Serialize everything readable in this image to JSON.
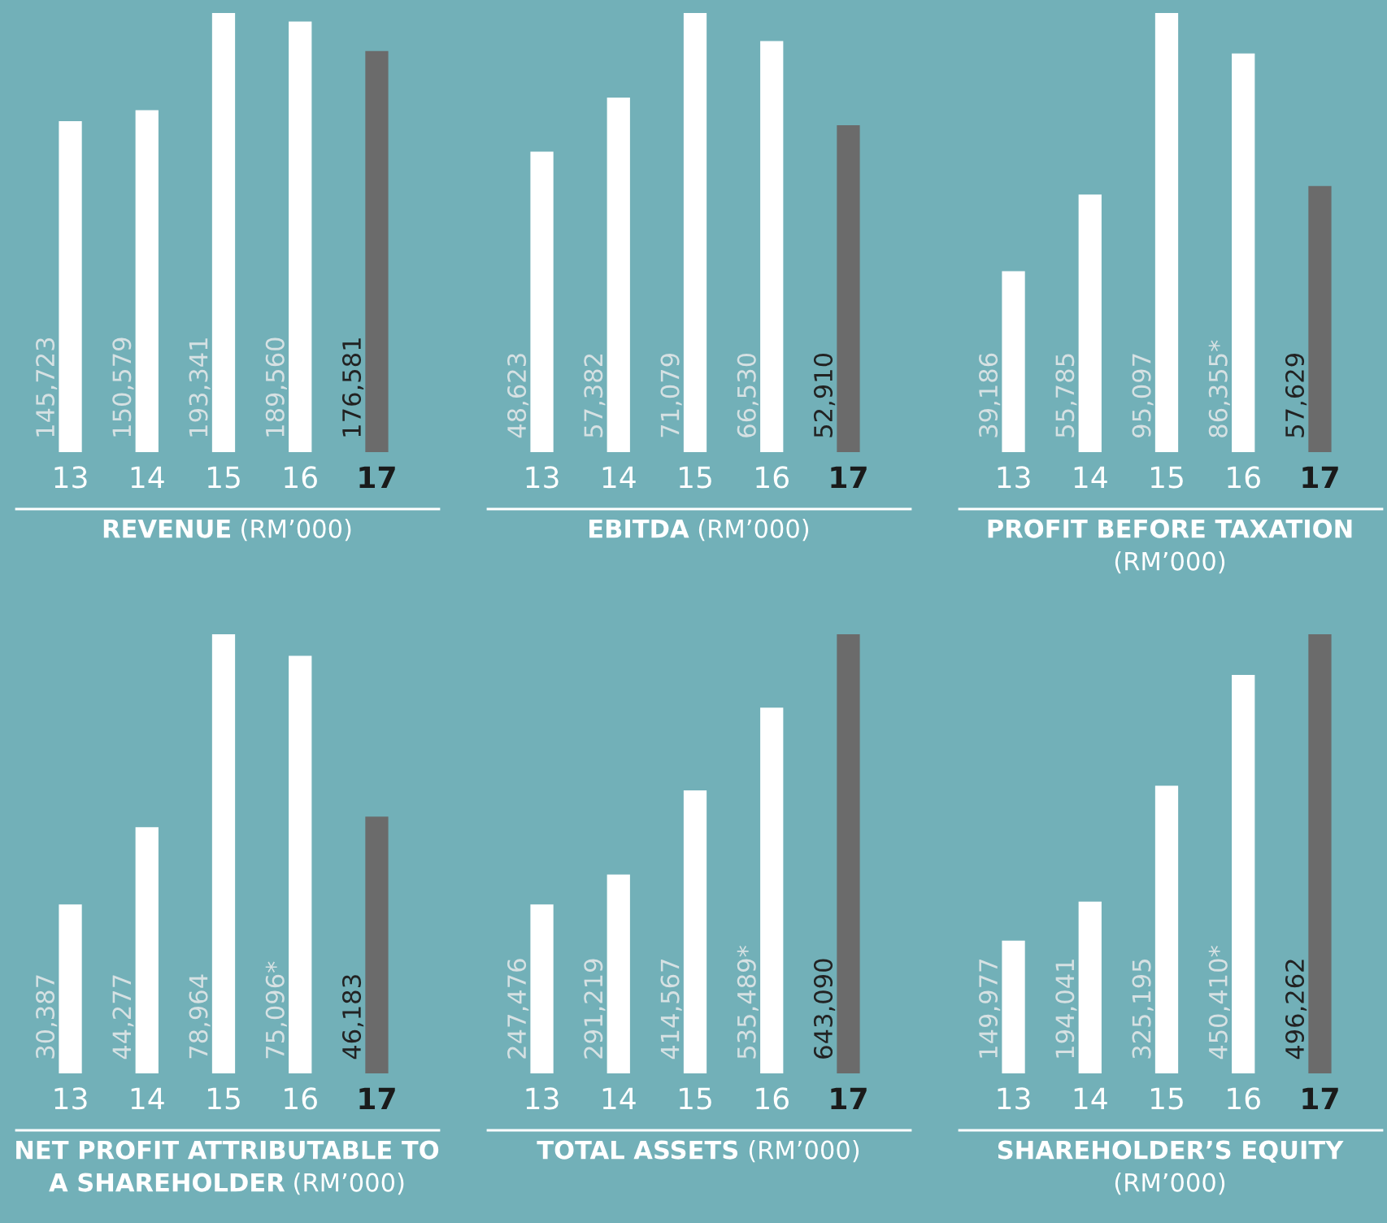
{
  "chart_data": [
    {
      "type": "bar",
      "title": "REVENUE",
      "subtitle": "(RM’000)",
      "categories": [
        "13",
        "14",
        "15",
        "16",
        "17"
      ],
      "values": [
        145723,
        150579,
        193341,
        189560,
        176581
      ],
      "value_labels": [
        "145,723",
        "150,579",
        "193,341",
        "189,560",
        "176,581"
      ],
      "colors": [
        "#ffffff",
        "#ffffff",
        "#ffffff",
        "#ffffff",
        "#6b6b6b"
      ]
    },
    {
      "type": "bar",
      "title": "EBITDA",
      "subtitle": "(RM’000)",
      "categories": [
        "13",
        "14",
        "15",
        "16",
        "17"
      ],
      "values": [
        48623,
        57382,
        71079,
        66530,
        52910
      ],
      "value_labels": [
        "48,623",
        "57,382",
        "71,079",
        "66,530",
        "52,910"
      ],
      "colors": [
        "#ffffff",
        "#ffffff",
        "#ffffff",
        "#ffffff",
        "#6b6b6b"
      ]
    },
    {
      "type": "bar",
      "title": "PROFIT BEFORE TAXATION",
      "subtitle": "(RM’000)",
      "categories": [
        "13",
        "14",
        "15",
        "16",
        "17"
      ],
      "values": [
        39186,
        55785,
        95097,
        86355,
        57629
      ],
      "value_labels": [
        "39,186",
        "55,785",
        "95,097",
        "86,355*",
        "57,629"
      ],
      "colors": [
        "#ffffff",
        "#ffffff",
        "#ffffff",
        "#ffffff",
        "#6b6b6b"
      ]
    },
    {
      "type": "bar",
      "title": "NET PROFIT ATTRIBUTABLE TO A SHAREHOLDER",
      "subtitle": "(RM’000)",
      "categories": [
        "13",
        "14",
        "15",
        "16",
        "17"
      ],
      "values": [
        30387,
        44277,
        78964,
        75096,
        46183
      ],
      "value_labels": [
        "30,387",
        "44,277",
        "78,964",
        "75,096*",
        "46,183"
      ],
      "colors": [
        "#ffffff",
        "#ffffff",
        "#ffffff",
        "#ffffff",
        "#6b6b6b"
      ]
    },
    {
      "type": "bar",
      "title": "TOTAL ASSETS",
      "subtitle": "(RM’000)",
      "categories": [
        "13",
        "14",
        "15",
        "16",
        "17"
      ],
      "values": [
        247476,
        291219,
        414567,
        535489,
        643090
      ],
      "value_labels": [
        "247,476",
        "291,219",
        "414,567",
        "535,489*",
        "643,090"
      ],
      "colors": [
        "#ffffff",
        "#ffffff",
        "#ffffff",
        "#ffffff",
        "#6b6b6b"
      ]
    },
    {
      "type": "bar",
      "title": "SHAREHOLDER’S EQUITY",
      "subtitle": "(RM’000)",
      "categories": [
        "13",
        "14",
        "15",
        "16",
        "17"
      ],
      "values": [
        149977,
        194041,
        325195,
        450410,
        496262
      ],
      "value_labels": [
        "149,977",
        "194,041",
        "325,195",
        "450,410*",
        "496,262"
      ],
      "colors": [
        "#ffffff",
        "#ffffff",
        "#ffffff",
        "#ffffff",
        "#6b6b6b"
      ]
    }
  ]
}
